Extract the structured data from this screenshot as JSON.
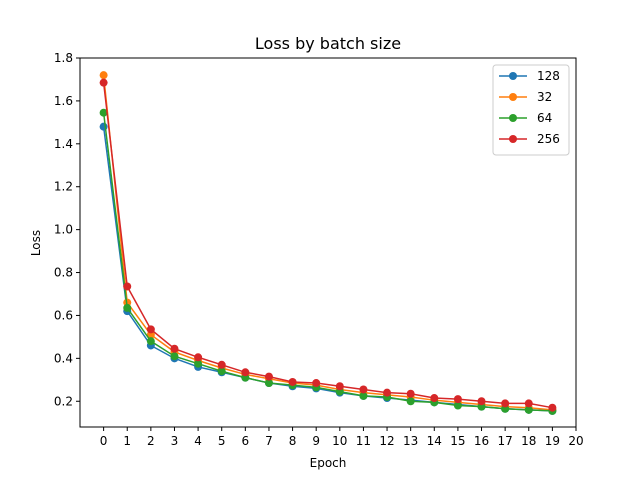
{
  "chart_data": {
    "type": "line",
    "title": "Loss by batch size",
    "xlabel": "Epoch",
    "ylabel": "Loss",
    "xlim": [
      -1,
      20
    ],
    "ylim": [
      0.08,
      1.8
    ],
    "xticks": [
      "0",
      "1",
      "2",
      "3",
      "4",
      "5",
      "6",
      "7",
      "8",
      "9",
      "10",
      "11",
      "12",
      "13",
      "14",
      "15",
      "16",
      "17",
      "18",
      "19",
      "20"
    ],
    "yticks": [
      "0.2",
      "0.4",
      "0.6",
      "0.8",
      "1.0",
      "1.2",
      "1.4",
      "1.6",
      "1.8"
    ],
    "legend_position": "top-right",
    "grid": false,
    "x": [
      0,
      1,
      2,
      3,
      4,
      5,
      6,
      7,
      8,
      9,
      10,
      11,
      12,
      13,
      14,
      15,
      16,
      17,
      18,
      19
    ],
    "series": [
      {
        "name": "128",
        "color": "#1f77b4",
        "values": [
          1.48,
          0.62,
          0.46,
          0.4,
          0.36,
          0.335,
          0.31,
          0.285,
          0.27,
          0.26,
          0.24,
          0.225,
          0.215,
          0.205,
          0.195,
          0.185,
          0.175,
          0.165,
          0.16,
          0.155
        ]
      },
      {
        "name": "32",
        "color": "#ff7f0e",
        "values": [
          1.72,
          0.66,
          0.51,
          0.43,
          0.39,
          0.355,
          0.325,
          0.305,
          0.285,
          0.275,
          0.255,
          0.24,
          0.23,
          0.22,
          0.205,
          0.195,
          0.185,
          0.175,
          0.17,
          0.16
        ]
      },
      {
        "name": "64",
        "color": "#2ca02c",
        "values": [
          1.545,
          0.635,
          0.48,
          0.41,
          0.375,
          0.34,
          0.31,
          0.285,
          0.275,
          0.265,
          0.245,
          0.225,
          0.22,
          0.2,
          0.195,
          0.18,
          0.175,
          0.165,
          0.16,
          0.155
        ]
      },
      {
        "name": "256",
        "color": "#d62728",
        "values": [
          1.685,
          0.735,
          0.535,
          0.445,
          0.405,
          0.37,
          0.335,
          0.315,
          0.29,
          0.285,
          0.27,
          0.255,
          0.24,
          0.235,
          0.215,
          0.21,
          0.2,
          0.19,
          0.19,
          0.17
        ]
      }
    ]
  }
}
